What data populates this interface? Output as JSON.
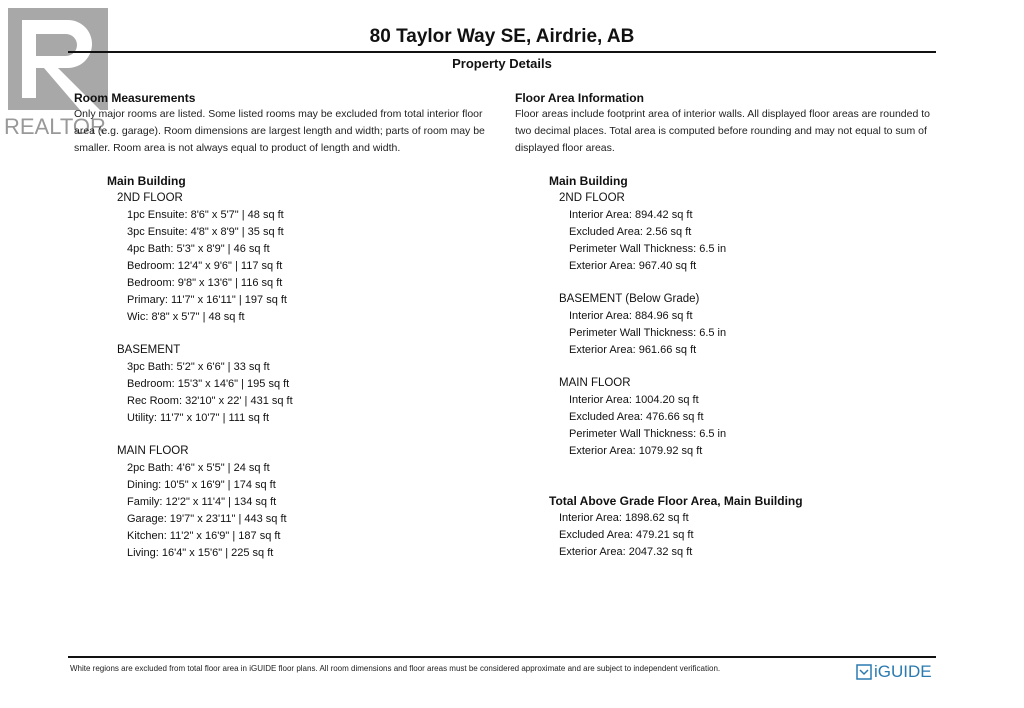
{
  "logo": {
    "text": "REALTOR",
    "icon": "realtor-r-logo"
  },
  "header": {
    "title": "80 Taylor Way SE, Airdrie, AB",
    "subtitle": "Property Details"
  },
  "left": {
    "heading": "Room Measurements",
    "desc": "Only major rooms are listed. Some listed rooms may be excluded from total interior floor area (e.g. garage). Room dimensions are largest length and width; parts of room may be smaller. Room area is not always equal to product of length and width.",
    "building": "Main Building",
    "floors": [
      {
        "name": "2ND FLOOR",
        "items": [
          "1pc Ensuite: 8'6\" x 5'7\" | 48 sq ft",
          "3pc Ensuite: 4'8\" x 8'9\" | 35 sq ft",
          "4pc Bath: 5'3\" x 8'9\" | 46 sq ft",
          "Bedroom: 12'4\" x 9'6\" | 117 sq ft",
          "Bedroom: 9'8\" x 13'6\" | 116 sq ft",
          "Primary: 11'7\" x 16'11\" | 197 sq ft",
          "Wic: 8'8\" x 5'7\" | 48 sq ft"
        ]
      },
      {
        "name": "BASEMENT",
        "items": [
          "3pc Bath: 5'2\" x 6'6\" | 33 sq ft",
          "Bedroom: 15'3\" x 14'6\" | 195 sq ft",
          "Rec Room: 32'10\" x 22' | 431 sq ft",
          "Utility: 11'7\" x 10'7\" | 111 sq ft"
        ]
      },
      {
        "name": "MAIN FLOOR",
        "items": [
          "2pc Bath: 4'6\" x 5'5\" | 24 sq ft",
          "Dining: 10'5\" x 16'9\" | 174 sq ft",
          "Family: 12'2\" x 11'4\" | 134 sq ft",
          "Garage: 19'7\" x 23'11\" | 443 sq ft",
          "Kitchen: 11'2\" x 16'9\" | 187 sq ft",
          "Living: 16'4\" x 15'6\" | 225 sq ft"
        ]
      }
    ]
  },
  "right": {
    "heading": "Floor Area Information",
    "desc": "Floor areas include footprint area of interior walls. All displayed floor areas are rounded to two decimal places. Total area is computed before rounding and may not equal to sum of displayed floor areas.",
    "building": "Main Building",
    "floors": [
      {
        "name": "2ND FLOOR",
        "items": [
          "Interior Area: 894.42 sq ft",
          "Excluded Area: 2.56 sq ft",
          "Perimeter Wall Thickness: 6.5 in",
          "Exterior Area: 967.40 sq ft"
        ]
      },
      {
        "name": "BASEMENT (Below Grade)",
        "items": [
          "Interior Area: 884.96 sq ft",
          "Perimeter Wall Thickness: 6.5 in",
          "Exterior Area: 961.66 sq ft"
        ]
      },
      {
        "name": "MAIN FLOOR",
        "items": [
          "Interior Area: 1004.20 sq ft",
          "Excluded Area: 476.66 sq ft",
          "Perimeter Wall Thickness: 6.5 in",
          "Exterior Area: 1079.92 sq ft"
        ]
      }
    ],
    "total": {
      "heading": "Total Above Grade Floor Area, Main Building",
      "items": [
        "Interior Area: 1898.62 sq ft",
        "Excluded Area: 479.21 sq ft",
        "Exterior Area: 2047.32 sq ft"
      ]
    }
  },
  "footer": {
    "text": "White regions are excluded from total floor area in iGUIDE floor plans. All room dimensions and floor areas must be considered approximate and are subject to independent verification.",
    "brand": "iGUIDE",
    "brand_color": "#2a7ab0"
  }
}
